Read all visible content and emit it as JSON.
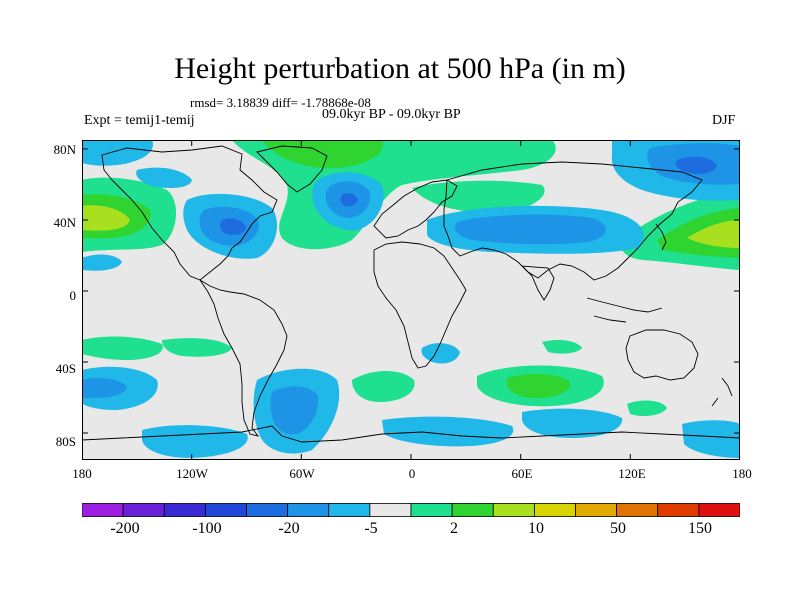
{
  "title": "Height perturbation at 500 hPa (in m)",
  "subtitle_stats": "rmsd= 3.18839  diff= -1.78868e-08",
  "period": "09.0kyr BP - 09.0kyr BP",
  "experiment": "Expt = temij1-temij",
  "season": "DJF",
  "map": {
    "projection": "cylindrical-equidistant",
    "background_color": "#e8e8e8",
    "lat_labels": [
      "80N",
      "40N",
      "0",
      "40S",
      "80S"
    ],
    "lat_values": [
      80,
      40,
      0,
      -40,
      -80
    ],
    "lon_labels": [
      "180",
      "120W",
      "60W",
      "0",
      "60E",
      "120E",
      "180"
    ],
    "lon_values": [
      -180,
      -120,
      -60,
      0,
      60,
      120,
      180
    ]
  },
  "colorbar": {
    "colors": [
      "#9b1fe0",
      "#6a1fd8",
      "#3a2ad6",
      "#2047d8",
      "#1e6de0",
      "#1e94e6",
      "#20b8e8",
      "#e8e8e8",
      "#1ee08e",
      "#30d430",
      "#a8e020",
      "#d8d400",
      "#e0aa00",
      "#e07400",
      "#e03c00",
      "#e01010"
    ],
    "labels": [
      "-200",
      "-100",
      "-20",
      "-5",
      "2",
      "10",
      "50",
      "150"
    ]
  },
  "contour_colors": {
    "neg_light": "#20b8e8",
    "neg_mid": "#1e94e6",
    "neg_strong": "#1e6de0",
    "pos_light": "#1ee08e",
    "pos_mid": "#30d430",
    "pos_strong": "#a8e020"
  }
}
